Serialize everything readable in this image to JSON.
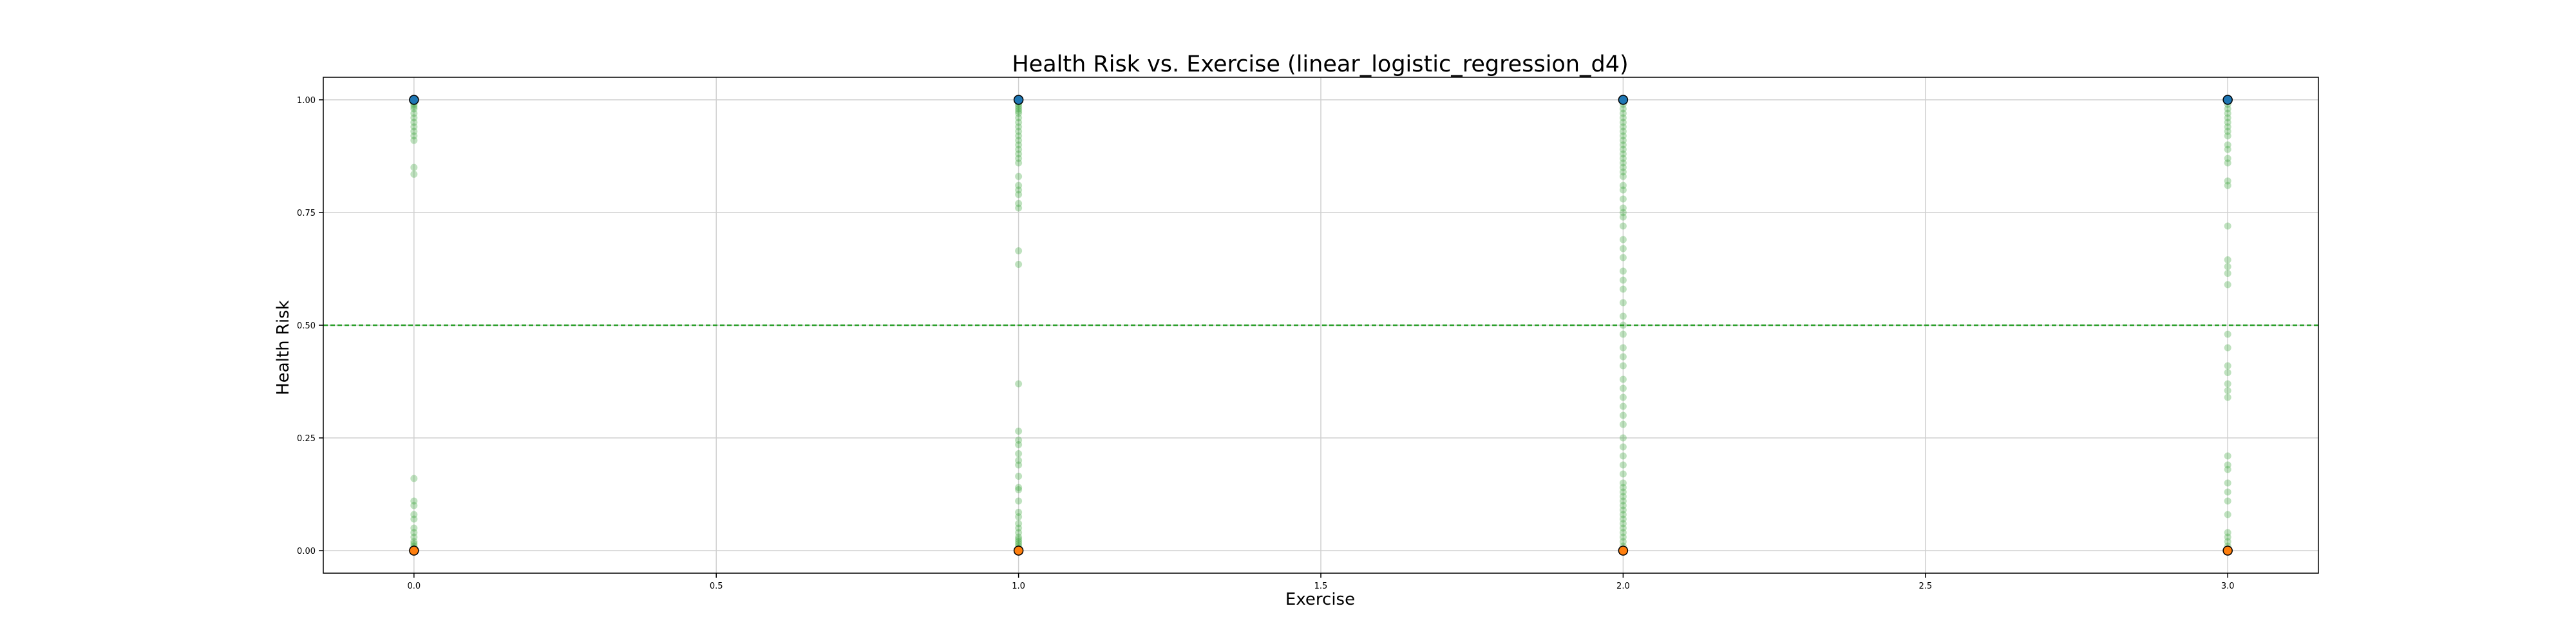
{
  "chart_data": {
    "type": "scatter",
    "title": "Health Risk vs. Exercise (linear_logistic_regression_d4)",
    "xlabel": "Exercise",
    "ylabel": "Health Risk",
    "xlim": [
      -0.15,
      3.15
    ],
    "ylim": [
      -0.05,
      1.05
    ],
    "x_ticks": [
      0.0,
      0.5,
      1.0,
      1.5,
      2.0,
      2.5,
      3.0
    ],
    "x_tick_labels": [
      "0.0",
      "0.5",
      "1.0",
      "1.5",
      "2.0",
      "2.5",
      "3.0"
    ],
    "y_ticks": [
      0.0,
      0.25,
      0.5,
      0.75,
      1.0
    ],
    "y_tick_labels": [
      "0.00",
      "0.25",
      "0.50",
      "0.75",
      "1.00"
    ],
    "grid": true,
    "threshold": {
      "y": 0.5,
      "color": "#2ca02c",
      "style": "dashed"
    },
    "colors": {
      "prediction": "#2ca02c",
      "actual_positive": "#1f77b4",
      "actual_negative": "#ff7f0e",
      "edge": "#000000"
    },
    "series": [
      {
        "kind": "prediction",
        "points": [
          {
            "x": 0,
            "y": 1.0
          },
          {
            "x": 0,
            "y": 0.995
          },
          {
            "x": 0,
            "y": 0.99
          },
          {
            "x": 0,
            "y": 0.985
          },
          {
            "x": 0,
            "y": 0.98
          },
          {
            "x": 0,
            "y": 0.97
          },
          {
            "x": 0,
            "y": 0.96
          },
          {
            "x": 0,
            "y": 0.95
          },
          {
            "x": 0,
            "y": 0.94
          },
          {
            "x": 0,
            "y": 0.93
          },
          {
            "x": 0,
            "y": 0.92
          },
          {
            "x": 0,
            "y": 0.91
          },
          {
            "x": 0,
            "y": 0.85
          },
          {
            "x": 0,
            "y": 0.835
          },
          {
            "x": 0,
            "y": 0.16
          },
          {
            "x": 0,
            "y": 0.11
          },
          {
            "x": 0,
            "y": 0.1
          },
          {
            "x": 0,
            "y": 0.08
          },
          {
            "x": 0,
            "y": 0.07
          },
          {
            "x": 0,
            "y": 0.05
          },
          {
            "x": 0,
            "y": 0.04
          },
          {
            "x": 0,
            "y": 0.03
          },
          {
            "x": 0,
            "y": 0.02
          },
          {
            "x": 0,
            "y": 0.015
          },
          {
            "x": 0,
            "y": 0.01
          },
          {
            "x": 0,
            "y": 0.005
          },
          {
            "x": 0,
            "y": 0.0
          },
          {
            "x": 1,
            "y": 1.0
          },
          {
            "x": 1,
            "y": 0.995
          },
          {
            "x": 1,
            "y": 0.99
          },
          {
            "x": 1,
            "y": 0.985
          },
          {
            "x": 1,
            "y": 0.98
          },
          {
            "x": 1,
            "y": 0.975
          },
          {
            "x": 1,
            "y": 0.97
          },
          {
            "x": 1,
            "y": 0.96
          },
          {
            "x": 1,
            "y": 0.95
          },
          {
            "x": 1,
            "y": 0.94
          },
          {
            "x": 1,
            "y": 0.93
          },
          {
            "x": 1,
            "y": 0.92
          },
          {
            "x": 1,
            "y": 0.91
          },
          {
            "x": 1,
            "y": 0.9
          },
          {
            "x": 1,
            "y": 0.89
          },
          {
            "x": 1,
            "y": 0.88
          },
          {
            "x": 1,
            "y": 0.87
          },
          {
            "x": 1,
            "y": 0.86
          },
          {
            "x": 1,
            "y": 0.83
          },
          {
            "x": 1,
            "y": 0.81
          },
          {
            "x": 1,
            "y": 0.8
          },
          {
            "x": 1,
            "y": 0.79
          },
          {
            "x": 1,
            "y": 0.77
          },
          {
            "x": 1,
            "y": 0.76
          },
          {
            "x": 1,
            "y": 0.665
          },
          {
            "x": 1,
            "y": 0.635
          },
          {
            "x": 1,
            "y": 0.37
          },
          {
            "x": 1,
            "y": 0.265
          },
          {
            "x": 1,
            "y": 0.245
          },
          {
            "x": 1,
            "y": 0.235
          },
          {
            "x": 1,
            "y": 0.215
          },
          {
            "x": 1,
            "y": 0.2
          },
          {
            "x": 1,
            "y": 0.19
          },
          {
            "x": 1,
            "y": 0.165
          },
          {
            "x": 1,
            "y": 0.14
          },
          {
            "x": 1,
            "y": 0.135
          },
          {
            "x": 1,
            "y": 0.11
          },
          {
            "x": 1,
            "y": 0.085
          },
          {
            "x": 1,
            "y": 0.075
          },
          {
            "x": 1,
            "y": 0.06
          },
          {
            "x": 1,
            "y": 0.05
          },
          {
            "x": 1,
            "y": 0.04
          },
          {
            "x": 1,
            "y": 0.03
          },
          {
            "x": 1,
            "y": 0.025
          },
          {
            "x": 1,
            "y": 0.02
          },
          {
            "x": 1,
            "y": 0.015
          },
          {
            "x": 1,
            "y": 0.01
          },
          {
            "x": 1,
            "y": 0.005
          },
          {
            "x": 1,
            "y": 0.0
          },
          {
            "x": 2,
            "y": 1.0
          },
          {
            "x": 2,
            "y": 0.99
          },
          {
            "x": 2,
            "y": 0.98
          },
          {
            "x": 2,
            "y": 0.97
          },
          {
            "x": 2,
            "y": 0.96
          },
          {
            "x": 2,
            "y": 0.95
          },
          {
            "x": 2,
            "y": 0.94
          },
          {
            "x": 2,
            "y": 0.93
          },
          {
            "x": 2,
            "y": 0.92
          },
          {
            "x": 2,
            "y": 0.91
          },
          {
            "x": 2,
            "y": 0.9
          },
          {
            "x": 2,
            "y": 0.89
          },
          {
            "x": 2,
            "y": 0.88
          },
          {
            "x": 2,
            "y": 0.87
          },
          {
            "x": 2,
            "y": 0.86
          },
          {
            "x": 2,
            "y": 0.85
          },
          {
            "x": 2,
            "y": 0.84
          },
          {
            "x": 2,
            "y": 0.83
          },
          {
            "x": 2,
            "y": 0.81
          },
          {
            "x": 2,
            "y": 0.8
          },
          {
            "x": 2,
            "y": 0.78
          },
          {
            "x": 2,
            "y": 0.76
          },
          {
            "x": 2,
            "y": 0.75
          },
          {
            "x": 2,
            "y": 0.74
          },
          {
            "x": 2,
            "y": 0.72
          },
          {
            "x": 2,
            "y": 0.69
          },
          {
            "x": 2,
            "y": 0.67
          },
          {
            "x": 2,
            "y": 0.65
          },
          {
            "x": 2,
            "y": 0.62
          },
          {
            "x": 2,
            "y": 0.6
          },
          {
            "x": 2,
            "y": 0.58
          },
          {
            "x": 2,
            "y": 0.55
          },
          {
            "x": 2,
            "y": 0.52
          },
          {
            "x": 2,
            "y": 0.5
          },
          {
            "x": 2,
            "y": 0.48
          },
          {
            "x": 2,
            "y": 0.45
          },
          {
            "x": 2,
            "y": 0.43
          },
          {
            "x": 2,
            "y": 0.41
          },
          {
            "x": 2,
            "y": 0.38
          },
          {
            "x": 2,
            "y": 0.36
          },
          {
            "x": 2,
            "y": 0.34
          },
          {
            "x": 2,
            "y": 0.32
          },
          {
            "x": 2,
            "y": 0.3
          },
          {
            "x": 2,
            "y": 0.28
          },
          {
            "x": 2,
            "y": 0.25
          },
          {
            "x": 2,
            "y": 0.23
          },
          {
            "x": 2,
            "y": 0.21
          },
          {
            "x": 2,
            "y": 0.19
          },
          {
            "x": 2,
            "y": 0.17
          },
          {
            "x": 2,
            "y": 0.15
          },
          {
            "x": 2,
            "y": 0.14
          },
          {
            "x": 2,
            "y": 0.13
          },
          {
            "x": 2,
            "y": 0.12
          },
          {
            "x": 2,
            "y": 0.11
          },
          {
            "x": 2,
            "y": 0.1
          },
          {
            "x": 2,
            "y": 0.09
          },
          {
            "x": 2,
            "y": 0.08
          },
          {
            "x": 2,
            "y": 0.07
          },
          {
            "x": 2,
            "y": 0.06
          },
          {
            "x": 2,
            "y": 0.05
          },
          {
            "x": 2,
            "y": 0.04
          },
          {
            "x": 2,
            "y": 0.03
          },
          {
            "x": 2,
            "y": 0.02
          },
          {
            "x": 2,
            "y": 0.01
          },
          {
            "x": 2,
            "y": 0.0
          },
          {
            "x": 3,
            "y": 1.0
          },
          {
            "x": 3,
            "y": 0.99
          },
          {
            "x": 3,
            "y": 0.98
          },
          {
            "x": 3,
            "y": 0.97
          },
          {
            "x": 3,
            "y": 0.96
          },
          {
            "x": 3,
            "y": 0.95
          },
          {
            "x": 3,
            "y": 0.94
          },
          {
            "x": 3,
            "y": 0.93
          },
          {
            "x": 3,
            "y": 0.92
          },
          {
            "x": 3,
            "y": 0.9
          },
          {
            "x": 3,
            "y": 0.89
          },
          {
            "x": 3,
            "y": 0.87
          },
          {
            "x": 3,
            "y": 0.86
          },
          {
            "x": 3,
            "y": 0.82
          },
          {
            "x": 3,
            "y": 0.81
          },
          {
            "x": 3,
            "y": 0.72
          },
          {
            "x": 3,
            "y": 0.645
          },
          {
            "x": 3,
            "y": 0.63
          },
          {
            "x": 3,
            "y": 0.615
          },
          {
            "x": 3,
            "y": 0.59
          },
          {
            "x": 3,
            "y": 0.48
          },
          {
            "x": 3,
            "y": 0.45
          },
          {
            "x": 3,
            "y": 0.41
          },
          {
            "x": 3,
            "y": 0.395
          },
          {
            "x": 3,
            "y": 0.37
          },
          {
            "x": 3,
            "y": 0.355
          },
          {
            "x": 3,
            "y": 0.34
          },
          {
            "x": 3,
            "y": 0.21
          },
          {
            "x": 3,
            "y": 0.19
          },
          {
            "x": 3,
            "y": 0.18
          },
          {
            "x": 3,
            "y": 0.15
          },
          {
            "x": 3,
            "y": 0.13
          },
          {
            "x": 3,
            "y": 0.11
          },
          {
            "x": 3,
            "y": 0.08
          },
          {
            "x": 3,
            "y": 0.04
          },
          {
            "x": 3,
            "y": 0.03
          },
          {
            "x": 3,
            "y": 0.02
          },
          {
            "x": 3,
            "y": 0.01
          },
          {
            "x": 3,
            "y": 0.0
          }
        ]
      },
      {
        "kind": "actual_positive",
        "points": [
          {
            "x": 0,
            "y": 1
          },
          {
            "x": 1,
            "y": 1
          },
          {
            "x": 2,
            "y": 1
          },
          {
            "x": 3,
            "y": 1
          }
        ]
      },
      {
        "kind": "actual_negative",
        "points": [
          {
            "x": 0,
            "y": 0
          },
          {
            "x": 1,
            "y": 0
          },
          {
            "x": 2,
            "y": 0
          },
          {
            "x": 3,
            "y": 0
          }
        ]
      }
    ]
  }
}
